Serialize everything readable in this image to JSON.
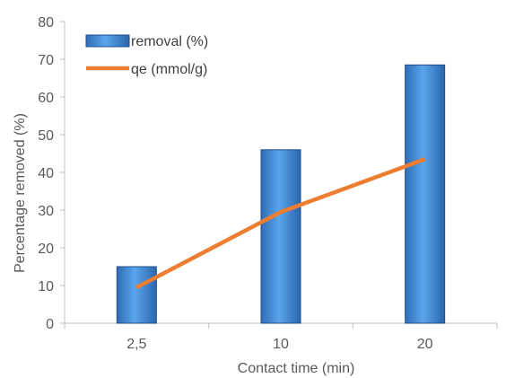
{
  "chart_data": {
    "type": "bar",
    "categories": [
      "2,5",
      "10",
      "20"
    ],
    "xlabel": "Contact time (min)",
    "ylabel": "Percentage removed (%)",
    "ylim": [
      0,
      80
    ],
    "yticks": [
      0,
      10,
      20,
      30,
      40,
      50,
      60,
      70,
      80
    ],
    "grid": false,
    "legend_position": "top-left",
    "series": [
      {
        "name": "removal (%)",
        "kind": "bar",
        "color": "#4a90d9",
        "values": [
          15,
          46,
          68.5
        ]
      },
      {
        "name": "qe (mmol/g)",
        "kind": "line",
        "color": "#ed7d31",
        "values": [
          9.5,
          29.5,
          43.5
        ]
      }
    ]
  }
}
